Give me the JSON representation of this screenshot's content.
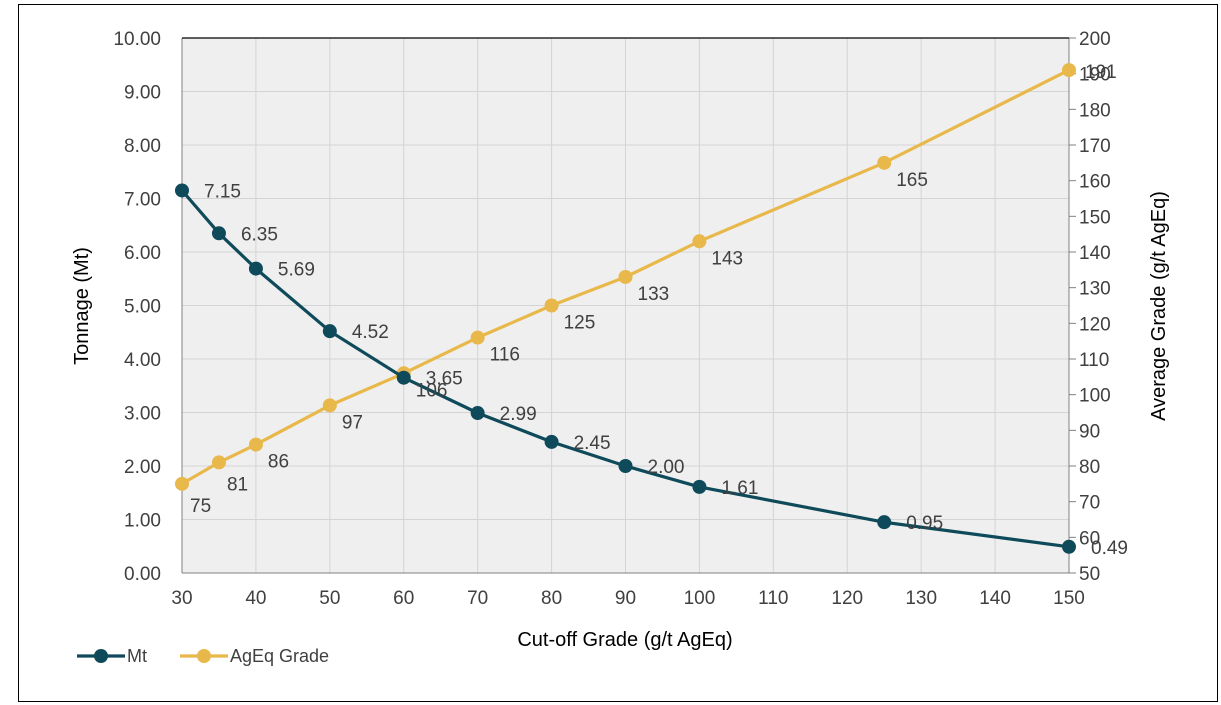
{
  "chart_data": {
    "type": "line",
    "x": [
      30,
      35,
      40,
      50,
      60,
      70,
      80,
      90,
      100,
      125,
      150
    ],
    "xlabel": "Cut-off Grade (g/t AgEq)",
    "xlim": [
      30,
      150
    ],
    "xticks": [
      "30",
      "40",
      "50",
      "60",
      "70",
      "80",
      "90",
      "100",
      "110",
      "120",
      "130",
      "140",
      "150"
    ],
    "ylabel": "Tonnage (Mt)",
    "ylim": [
      0,
      10
    ],
    "yticks": [
      "0.00",
      "1.00",
      "2.00",
      "3.00",
      "4.00",
      "5.00",
      "6.00",
      "7.00",
      "8.00",
      "9.00",
      "10.00"
    ],
    "y2label": "Average Grade (g/t AgEq)",
    "y2lim": [
      50,
      200
    ],
    "y2ticks": [
      "50",
      "60",
      "70",
      "80",
      "90",
      "100",
      "110",
      "120",
      "130",
      "140",
      "150",
      "160",
      "170",
      "180",
      "190",
      "200"
    ],
    "grid": true,
    "legend_position": "bottom-left",
    "series": [
      {
        "name": "Mt",
        "axis": "left",
        "color": "#0e4a5a",
        "values": [
          7.15,
          6.35,
          5.69,
          4.52,
          3.65,
          2.99,
          2.45,
          2.0,
          1.61,
          0.95,
          0.49
        ],
        "labels": [
          "7.15",
          "6.35",
          "5.69",
          "4.52",
          "3.65",
          "2.99",
          "2.45",
          "2.00",
          "1.61",
          "0.95",
          "0.49"
        ]
      },
      {
        "name": "AgEq Grade",
        "axis": "right",
        "color": "#e8b84a",
        "values": [
          75,
          81,
          86,
          97,
          106,
          116,
          125,
          133,
          143,
          165,
          191
        ],
        "labels": [
          "75",
          "81",
          "86",
          "97",
          "106",
          "116",
          "125",
          "133",
          "143",
          "165",
          "191"
        ]
      }
    ]
  }
}
